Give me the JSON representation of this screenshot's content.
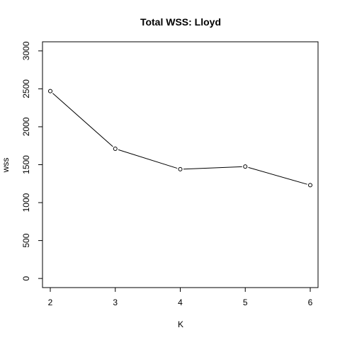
{
  "chart_data": {
    "type": "line",
    "title": "Total WSS: Lloyd",
    "xlabel": "K",
    "ylabel": "wss",
    "x": [
      2,
      3,
      4,
      5,
      6
    ],
    "series": [
      {
        "values": [
          2470,
          1710,
          1440,
          1475,
          1230
        ],
        "marker": "open-circle",
        "color": "#000000"
      }
    ],
    "xlim": [
      1.88,
      6.12
    ],
    "ylim": [
      -120,
      3120
    ],
    "xticks": [
      "2",
      "3",
      "4",
      "5",
      "6"
    ],
    "yticks": [
      "0",
      "500",
      "1000",
      "1500",
      "2000",
      "2500",
      "3000"
    ],
    "grid": false,
    "legend": "none"
  }
}
